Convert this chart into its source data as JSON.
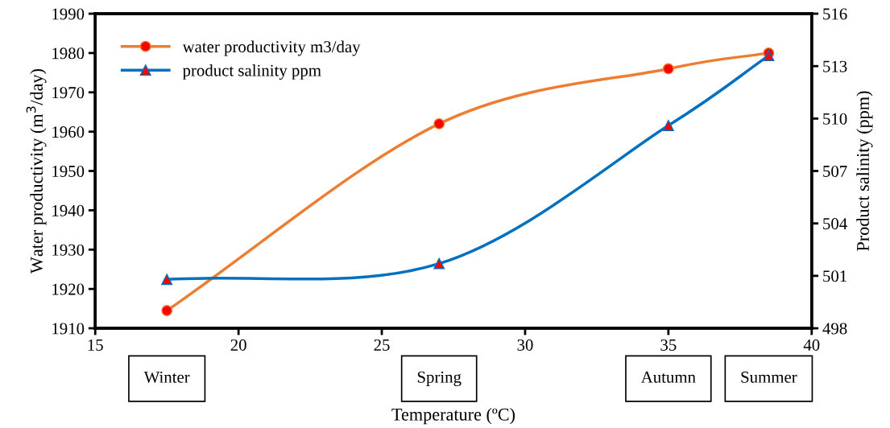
{
  "chart_data": {
    "type": "line",
    "xlabel": "Temperature (ºC)",
    "ylabel": "Water productivity (m$^{3}$/day)",
    "y2label": "Product salinity (ppm)",
    "x": [
      17.5,
      27,
      35,
      38.5
    ],
    "series": [
      {
        "name": "water productivity m3/day",
        "color": "#ed7d31",
        "marker": "circle",
        "values": [
          1914.5,
          1962,
          1976,
          1980
        ]
      },
      {
        "name": "product salinity ppm",
        "color": "#0070c0",
        "marker": "triangle",
        "axis": "y2",
        "values": [
          500.8,
          501.7,
          509.6,
          513.6
        ]
      }
    ],
    "xlim": [
      15,
      40
    ],
    "xticks": [
      15,
      20,
      25,
      30,
      35,
      40
    ],
    "ylim": [
      1910,
      1990
    ],
    "yticks": [
      1910,
      1920,
      1930,
      1940,
      1950,
      1960,
      1970,
      1980,
      1990
    ],
    "y2lim": [
      498,
      516
    ],
    "y2ticks": [
      498,
      501,
      504,
      507,
      510,
      513,
      516
    ],
    "annotations": [
      "Winter",
      "Spring",
      "Autumn",
      "Summer"
    ],
    "legend": "top left",
    "grid": false
  }
}
